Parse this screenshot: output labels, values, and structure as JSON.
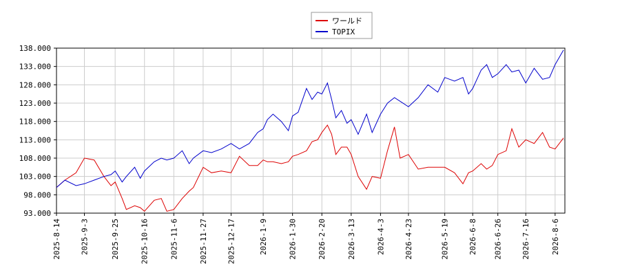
{
  "chart_data": {
    "type": "line",
    "x": [
      "2025-08-14",
      "2025-08-20",
      "2025-08-28",
      "2025-09-03",
      "2025-09-10",
      "2025-09-17",
      "2025-09-22",
      "2025-09-25",
      "2025-09-30",
      "2025-10-03",
      "2025-10-09",
      "2025-10-13",
      "2025-10-16",
      "2025-10-23",
      "2025-10-28",
      "2025-11-01",
      "2025-11-06",
      "2025-11-12",
      "2025-11-17",
      "2025-11-20",
      "2025-11-27",
      "2025-12-03",
      "2025-12-10",
      "2025-12-17",
      "2025-12-23",
      "2025-12-30",
      "2026-01-05",
      "2026-01-09",
      "2026-01-12",
      "2026-01-16",
      "2026-01-22",
      "2026-01-27",
      "2026-01-30",
      "2026-02-03",
      "2026-02-09",
      "2026-02-13",
      "2026-02-17",
      "2026-02-20",
      "2026-02-24",
      "2026-02-27",
      "2026-03-02",
      "2026-03-06",
      "2026-03-10",
      "2026-03-13",
      "2026-03-18",
      "2026-03-24",
      "2026-03-28",
      "2026-04-03",
      "2026-04-08",
      "2026-04-13",
      "2026-04-17",
      "2026-04-23",
      "2026-04-30",
      "2026-05-07",
      "2026-05-14",
      "2026-05-19",
      "2026-05-26",
      "2026-06-01",
      "2026-06-05",
      "2026-06-08",
      "2026-06-14",
      "2026-06-18",
      "2026-06-22",
      "2026-06-26",
      "2026-07-02",
      "2026-07-06",
      "2026-07-11",
      "2026-07-16",
      "2026-07-22",
      "2026-07-28",
      "2026-08-02",
      "2026-08-06",
      "2026-08-12"
    ],
    "series": [
      {
        "name": "ワールド",
        "color": "#dd0000",
        "values": [
          100,
          102,
          104,
          108,
          107.5,
          103,
          100.5,
          101.5,
          97,
          94,
          95,
          94.5,
          93.5,
          96.5,
          97,
          93.5,
          94,
          97,
          99,
          100,
          105.5,
          104,
          104.5,
          104,
          108.5,
          106,
          106,
          107.5,
          107,
          107,
          106.5,
          107,
          108.5,
          109,
          110,
          112.5,
          113,
          115,
          117,
          114.5,
          109,
          111,
          111,
          109,
          103,
          99.5,
          103,
          102.5,
          110,
          116.5,
          108,
          109,
          105,
          105.5,
          105.5,
          105.5,
          104,
          101,
          104,
          104.5,
          106.5,
          105,
          106,
          109,
          110,
          116,
          111,
          113,
          112,
          115,
          111,
          110.5,
          113.5
        ]
      },
      {
        "name": "TOPIX",
        "color": "#0000cc",
        "values": [
          100,
          102,
          100.5,
          101,
          102,
          103,
          103.5,
          104.5,
          101.5,
          103,
          105.5,
          102.5,
          104.5,
          107,
          108,
          107.5,
          108,
          110,
          106.5,
          108,
          110,
          109.5,
          110.5,
          112,
          110.5,
          112,
          115,
          116,
          118.5,
          120,
          118,
          115.5,
          119.5,
          120.5,
          127,
          124,
          126,
          125.5,
          128.5,
          124,
          119,
          121,
          117.5,
          118.5,
          114.5,
          120,
          115,
          120,
          123,
          124.5,
          123.5,
          122,
          124.5,
          128,
          126,
          130,
          129,
          130,
          125.5,
          127,
          132,
          133.5,
          130,
          131,
          133.5,
          131.5,
          132,
          128.5,
          132.5,
          129.5,
          130,
          133.5,
          137.5
        ]
      }
    ],
    "xlim": [
      "2025-08-14",
      "2026-08-13"
    ],
    "xticks": [
      {
        "value": "2025-08-14",
        "label": "2025-8-14"
      },
      {
        "value": "2025-09-03",
        "label": "2025-9-3"
      },
      {
        "value": "2025-09-25",
        "label": "2025-9-25"
      },
      {
        "value": "2025-10-16",
        "label": "2025-10-16"
      },
      {
        "value": "2025-11-06",
        "label": "2025-11-6"
      },
      {
        "value": "2025-11-27",
        "label": "2025-11-27"
      },
      {
        "value": "2025-12-17",
        "label": "2025-12-17"
      },
      {
        "value": "2026-01-09",
        "label": "2026-1-9"
      },
      {
        "value": "2026-01-30",
        "label": "2026-1-30"
      },
      {
        "value": "2026-02-20",
        "label": "2026-2-20"
      },
      {
        "value": "2026-03-13",
        "label": "2026-3-13"
      },
      {
        "value": "2026-04-03",
        "label": "2026-4-3"
      },
      {
        "value": "2026-04-23",
        "label": "2026-4-23"
      },
      {
        "value": "2026-05-19",
        "label": "2026-5-19"
      },
      {
        "value": "2026-06-08",
        "label": "2026-6-8"
      },
      {
        "value": "2026-06-26",
        "label": "2026-6-26"
      },
      {
        "value": "2026-07-16",
        "label": "2026-7-16"
      },
      {
        "value": "2026-08-06",
        "label": "2026-8-6"
      }
    ],
    "ylim": [
      93,
      138
    ],
    "yticks": [
      {
        "value": 93,
        "label": "93.000"
      },
      {
        "value": 98,
        "label": "98.000"
      },
      {
        "value": 103,
        "label": "103.000"
      },
      {
        "value": 108,
        "label": "108.000"
      },
      {
        "value": 113,
        "label": "113.000"
      },
      {
        "value": 118,
        "label": "118.000"
      },
      {
        "value": 123,
        "label": "123.000"
      },
      {
        "value": 128,
        "label": "128.000"
      },
      {
        "value": 133,
        "label": "133.000"
      },
      {
        "value": 138,
        "label": "138.000"
      }
    ],
    "grid": true
  }
}
